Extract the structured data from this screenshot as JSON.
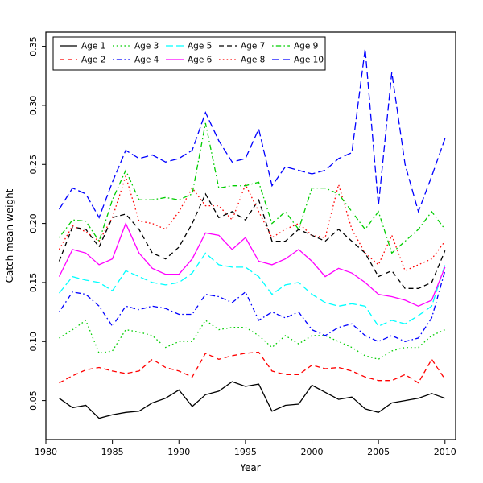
{
  "chart_data": {
    "type": "line",
    "title": "",
    "xlabel": "Year",
    "ylabel": "Catch mean weight",
    "grid": false,
    "legend_position": "top-left-inside",
    "xlim": [
      1980,
      2010.8
    ],
    "ylim": [
      0.017,
      0.362
    ],
    "x_ticks": [
      1980,
      1985,
      1990,
      1995,
      2000,
      2005,
      2010
    ],
    "y_ticks": [
      0.05,
      0.1,
      0.15,
      0.2,
      0.25,
      0.3,
      0.35
    ],
    "x": [
      1981,
      1982,
      1983,
      1984,
      1985,
      1986,
      1987,
      1988,
      1989,
      1990,
      1991,
      1992,
      1993,
      1994,
      1995,
      1996,
      1997,
      1998,
      1999,
      2000,
      2001,
      2002,
      2003,
      2004,
      2005,
      2006,
      2007,
      2008,
      2009,
      2010
    ],
    "series": [
      {
        "name": "Age 1",
        "color": "#000000",
        "linetype": "solid",
        "values": [
          0.052,
          0.044,
          0.046,
          0.035,
          0.038,
          0.04,
          0.041,
          0.048,
          0.052,
          0.059,
          0.045,
          0.055,
          0.058,
          0.066,
          0.062,
          0.064,
          0.041,
          0.046,
          0.047,
          0.063,
          0.057,
          0.051,
          0.053,
          0.043,
          0.04,
          0.048,
          0.05,
          0.052,
          0.056,
          0.052
        ]
      },
      {
        "name": "Age 2",
        "color": "#FF0000",
        "linetype": "dashed",
        "values": [
          0.065,
          0.071,
          0.076,
          0.078,
          0.075,
          0.073,
          0.075,
          0.085,
          0.078,
          0.075,
          0.07,
          0.09,
          0.085,
          0.088,
          0.09,
          0.091,
          0.075,
          0.072,
          0.072,
          0.08,
          0.077,
          0.078,
          0.075,
          0.07,
          0.067,
          0.067,
          0.072,
          0.065,
          0.085,
          0.068
        ]
      },
      {
        "name": "Age 3",
        "color": "#00CD00",
        "linetype": "dotted",
        "values": [
          0.103,
          0.11,
          0.118,
          0.09,
          0.092,
          0.11,
          0.108,
          0.105,
          0.095,
          0.1,
          0.1,
          0.118,
          0.11,
          0.112,
          0.112,
          0.105,
          0.095,
          0.105,
          0.098,
          0.105,
          0.105,
          0.1,
          0.095,
          0.088,
          0.085,
          0.092,
          0.095,
          0.095,
          0.105,
          0.11
        ]
      },
      {
        "name": "Age 4",
        "color": "#0000FF",
        "linetype": "dotdash",
        "values": [
          0.125,
          0.142,
          0.14,
          0.13,
          0.113,
          0.13,
          0.127,
          0.13,
          0.128,
          0.123,
          0.123,
          0.14,
          0.138,
          0.133,
          0.142,
          0.118,
          0.125,
          0.12,
          0.125,
          0.11,
          0.105,
          0.112,
          0.115,
          0.105,
          0.1,
          0.105,
          0.1,
          0.103,
          0.12,
          0.16
        ]
      },
      {
        "name": "Age 5",
        "color": "#00FFFF",
        "linetype": "longdash",
        "values": [
          0.141,
          0.155,
          0.152,
          0.15,
          0.143,
          0.16,
          0.155,
          0.15,
          0.148,
          0.15,
          0.158,
          0.175,
          0.165,
          0.163,
          0.163,
          0.155,
          0.14,
          0.148,
          0.15,
          0.14,
          0.133,
          0.13,
          0.132,
          0.13,
          0.113,
          0.118,
          0.115,
          0.122,
          0.13,
          0.165
        ]
      },
      {
        "name": "Age 6",
        "color": "#FF00FF",
        "linetype": "solid",
        "values": [
          0.155,
          0.178,
          0.175,
          0.165,
          0.17,
          0.2,
          0.175,
          0.162,
          0.157,
          0.157,
          0.17,
          0.192,
          0.19,
          0.178,
          0.188,
          0.168,
          0.165,
          0.17,
          0.178,
          0.168,
          0.155,
          0.162,
          0.158,
          0.15,
          0.14,
          0.138,
          0.135,
          0.13,
          0.135,
          0.163
        ]
      },
      {
        "name": "Age 7",
        "color": "#000000",
        "linetype": "dashed",
        "values": [
          0.168,
          0.197,
          0.195,
          0.18,
          0.205,
          0.208,
          0.195,
          0.175,
          0.17,
          0.18,
          0.2,
          0.225,
          0.205,
          0.21,
          0.203,
          0.22,
          0.185,
          0.185,
          0.195,
          0.19,
          0.185,
          0.195,
          0.185,
          0.175,
          0.155,
          0.16,
          0.145,
          0.145,
          0.15,
          0.177
        ]
      },
      {
        "name": "Age 8",
        "color": "#FF0000",
        "linetype": "dotted",
        "values": [
          0.178,
          0.198,
          0.193,
          0.185,
          0.205,
          0.24,
          0.202,
          0.2,
          0.195,
          0.21,
          0.23,
          0.215,
          0.215,
          0.203,
          0.233,
          0.21,
          0.188,
          0.195,
          0.2,
          0.19,
          0.188,
          0.233,
          0.195,
          0.175,
          0.165,
          0.19,
          0.16,
          0.165,
          0.17,
          0.185
        ]
      },
      {
        "name": "Age 9",
        "color": "#00CD00",
        "linetype": "dotdash",
        "values": [
          0.188,
          0.203,
          0.202,
          0.185,
          0.22,
          0.245,
          0.22,
          0.22,
          0.222,
          0.22,
          0.225,
          0.285,
          0.23,
          0.232,
          0.232,
          0.235,
          0.2,
          0.21,
          0.195,
          0.23,
          0.23,
          0.225,
          0.21,
          0.195,
          0.21,
          0.175,
          0.185,
          0.195,
          0.21,
          0.195
        ]
      },
      {
        "name": "Age 10",
        "color": "#0000FF",
        "linetype": "longdash",
        "values": [
          0.212,
          0.23,
          0.225,
          0.205,
          0.235,
          0.262,
          0.255,
          0.258,
          0.252,
          0.255,
          0.262,
          0.294,
          0.27,
          0.252,
          0.255,
          0.28,
          0.232,
          0.248,
          0.245,
          0.242,
          0.245,
          0.255,
          0.26,
          0.348,
          0.215,
          0.328,
          0.25,
          0.21,
          0.24,
          0.272
        ]
      }
    ]
  }
}
